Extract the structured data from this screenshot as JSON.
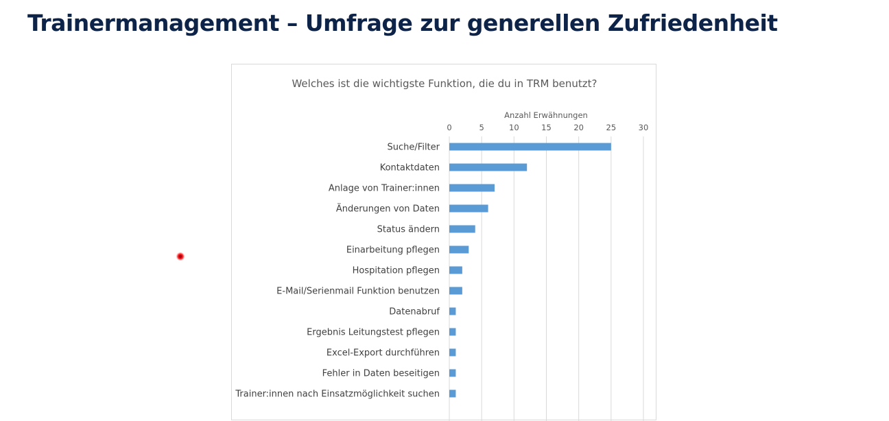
{
  "slide": {
    "title": "Trainermanagement – Umfrage zur generellen Zufriedenheit"
  },
  "chart_data": {
    "type": "bar",
    "orientation": "horizontal",
    "title": "Welches ist die wichtigste Funktion, die du in TRM benutzt?",
    "xlabel": "Anzahl Erwähnungen",
    "ylabel": "",
    "xlim": [
      0,
      30
    ],
    "ticks": [
      "0",
      "5",
      "10",
      "15",
      "20",
      "25",
      "30"
    ],
    "axis_position": "top",
    "grid": true,
    "bar_color": "#5b9bd5",
    "categories": [
      "Suche/Filter",
      "Kontaktdaten",
      "Anlage von Trainer:innen",
      "Änderungen von Daten",
      "Status ändern",
      "Einarbeitung pflegen",
      "Hospitation pflegen",
      "E-Mail/Serienmail Funktion benutzen",
      "Datenabruf",
      "Ergebnis Leitungstest pflegen",
      "Excel-Export durchführen",
      "Fehler in Daten beseitigen",
      "Trainer:innen nach Einsatzmöglichkeit suchen"
    ],
    "values": [
      25,
      12,
      7,
      6,
      4,
      3,
      2,
      2,
      1,
      1,
      1,
      1,
      1
    ]
  }
}
